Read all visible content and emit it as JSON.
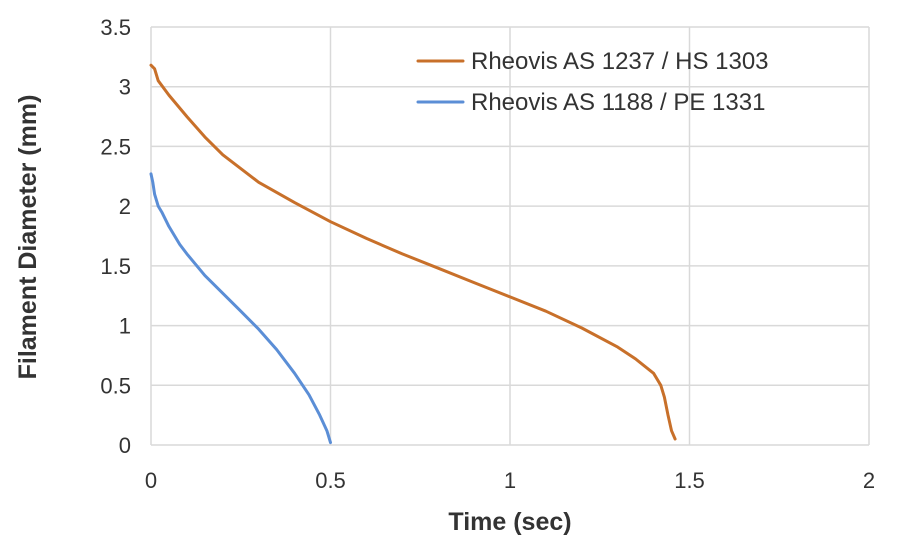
{
  "chart_data": {
    "type": "line",
    "title": "",
    "xlabel": "Time (sec)",
    "ylabel": "Filament Diameter (mm)",
    "xlim": [
      0,
      2
    ],
    "ylim": [
      0,
      3.5
    ],
    "xticks": [
      0,
      0.5,
      1,
      1.5,
      2
    ],
    "yticks": [
      0,
      0.5,
      1,
      1.5,
      2,
      2.5,
      3,
      3.5
    ],
    "xtick_labels": [
      "0",
      "0.5",
      "1",
      "1.5",
      "2"
    ],
    "ytick_labels": [
      "0",
      "0.5",
      "1",
      "1.5",
      "2",
      "2.5",
      "3",
      "3.5"
    ],
    "grid": true,
    "legend": "top-right",
    "series": [
      {
        "name": "Rheovis AS 1237 / HS 1303",
        "color": "#c8702a",
        "x": [
          0,
          0.01,
          0.02,
          0.05,
          0.1,
          0.15,
          0.2,
          0.3,
          0.4,
          0.5,
          0.6,
          0.7,
          0.8,
          0.9,
          1.0,
          1.1,
          1.2,
          1.3,
          1.35,
          1.4,
          1.42,
          1.43,
          1.44,
          1.45,
          1.46
        ],
        "y": [
          3.18,
          3.15,
          3.05,
          2.93,
          2.75,
          2.58,
          2.43,
          2.2,
          2.03,
          1.87,
          1.73,
          1.6,
          1.48,
          1.36,
          1.24,
          1.12,
          0.98,
          0.82,
          0.72,
          0.6,
          0.5,
          0.4,
          0.25,
          0.12,
          0.05
        ]
      },
      {
        "name": "Rheovis AS 1188 / PE 1331",
        "color": "#5b8ed6",
        "x": [
          0,
          0.005,
          0.01,
          0.02,
          0.03,
          0.05,
          0.08,
          0.1,
          0.15,
          0.2,
          0.25,
          0.3,
          0.35,
          0.4,
          0.44,
          0.47,
          0.49,
          0.5
        ],
        "y": [
          2.27,
          2.2,
          2.1,
          2.0,
          1.95,
          1.83,
          1.68,
          1.6,
          1.42,
          1.27,
          1.12,
          0.97,
          0.8,
          0.6,
          0.42,
          0.25,
          0.12,
          0.02
        ]
      }
    ]
  }
}
